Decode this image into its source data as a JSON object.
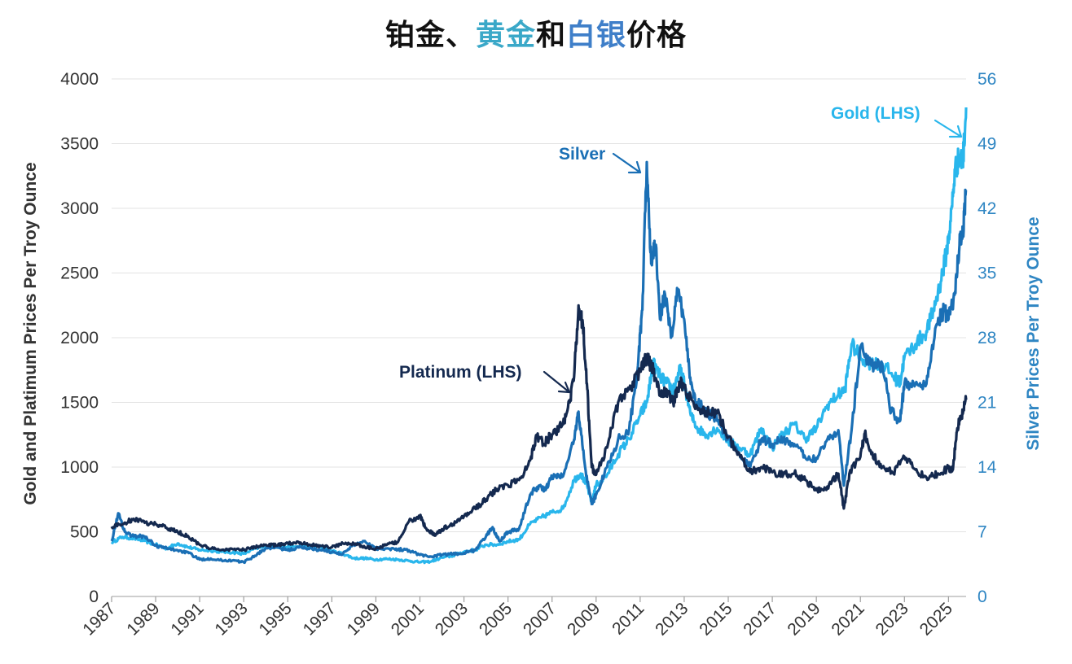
{
  "title_parts": [
    {
      "text": "铂金、",
      "color": "#111111"
    },
    {
      "text": "黄金",
      "color": "#3aa8c8"
    },
    {
      "text": "和",
      "color": "#111111"
    },
    {
      "text": "白银",
      "color": "#3f7fc9"
    },
    {
      "text": "价格",
      "color": "#111111"
    }
  ],
  "chart_data": {
    "type": "line",
    "ylabel": "Gold and Platimum Prices Per Troy Ounce",
    "y2label": "Silver Prices Per Troy Ounce",
    "ylim": [
      0,
      4000
    ],
    "y2lim": [
      0,
      56
    ],
    "yticks": [
      "0",
      "500",
      "1000",
      "1500",
      "2000",
      "2500",
      "3000",
      "3500",
      "4000"
    ],
    "y2ticks": [
      "0",
      "7",
      "14",
      "21",
      "28",
      "35",
      "42",
      "49",
      "56"
    ],
    "xticks": [
      "1987",
      "1989",
      "1991",
      "1993",
      "1995",
      "1997",
      "1999",
      "2001",
      "2003",
      "2005",
      "2007",
      "2009",
      "2011",
      "2013",
      "2015",
      "2017",
      "2019",
      "2021",
      "2023",
      "2025"
    ],
    "xlim": [
      1987,
      2025.8
    ],
    "grid": true,
    "colors": {
      "platinum": "#14294f",
      "gold": "#29b6ec",
      "silver": "#1a6fb5",
      "left_axis": "#333333",
      "right_axis": "#2f86c3"
    },
    "annotations": {
      "platinum": "Platinum (LHS)",
      "silver": "Silver",
      "gold": "Gold (LHS)"
    },
    "series": [
      {
        "name": "Platinum (LHS)",
        "axis": "left",
        "x": [
          1987.0,
          1987.5,
          1988.0,
          1988.5,
          1989.0,
          1989.5,
          1990.0,
          1990.5,
          1991.0,
          1991.5,
          1992.0,
          1992.5,
          1993.0,
          1993.5,
          1994.0,
          1994.5,
          1995.0,
          1995.5,
          1996.0,
          1996.5,
          1997.0,
          1997.5,
          1998.0,
          1998.5,
          1999.0,
          1999.5,
          2000.0,
          2000.5,
          2001.0,
          2001.3,
          2001.7,
          2002.0,
          2002.5,
          2003.0,
          2003.5,
          2004.0,
          2004.5,
          2005.0,
          2005.5,
          2006.0,
          2006.3,
          2006.6,
          2007.0,
          2007.5,
          2007.8,
          2008.0,
          2008.2,
          2008.4,
          2008.6,
          2008.8,
          2009.0,
          2009.5,
          2010.0,
          2010.5,
          2011.0,
          2011.3,
          2011.6,
          2011.9,
          2012.2,
          2012.5,
          2012.8,
          2013.0,
          2013.5,
          2014.0,
          2014.5,
          2015.0,
          2015.5,
          2016.0,
          2016.5,
          2017.0,
          2017.5,
          2018.0,
          2018.5,
          2019.0,
          2019.5,
          2020.0,
          2020.25,
          2020.5,
          2021.0,
          2021.2,
          2021.5,
          2022.0,
          2022.5,
          2023.0,
          2023.5,
          2024.0,
          2024.5,
          2025.0,
          2025.2,
          2025.4,
          2025.6,
          2025.8
        ],
        "values": [
          540,
          560,
          600,
          570,
          560,
          530,
          500,
          460,
          400,
          370,
          360,
          365,
          360,
          380,
          400,
          395,
          410,
          420,
          400,
          390,
          380,
          410,
          410,
          380,
          370,
          400,
          420,
          580,
          620,
          520,
          470,
          520,
          560,
          620,
          680,
          750,
          830,
          860,
          900,
          1050,
          1250,
          1180,
          1250,
          1330,
          1500,
          1700,
          2250,
          2100,
          1600,
          1000,
          940,
          1150,
          1500,
          1600,
          1750,
          1850,
          1750,
          1550,
          1600,
          1500,
          1650,
          1620,
          1450,
          1430,
          1420,
          1230,
          1100,
          960,
          1000,
          960,
          940,
          950,
          900,
          820,
          850,
          950,
          680,
          950,
          1080,
          1260,
          1100,
          1000,
          950,
          1080,
          980,
          920,
          950,
          990,
          980,
          1300,
          1400,
          1520
        ]
      },
      {
        "name": "Gold (LHS)",
        "axis": "left",
        "x": [
          1987.0,
          1987.5,
          1988.0,
          1988.5,
          1989.0,
          1989.5,
          1990.0,
          1990.5,
          1991.0,
          1991.5,
          1992.0,
          1992.5,
          1993.0,
          1993.5,
          1994.0,
          1994.5,
          1995.0,
          1995.5,
          1996.0,
          1996.5,
          1997.0,
          1997.5,
          1998.0,
          1998.5,
          1999.0,
          1999.5,
          2000.0,
          2000.5,
          2001.0,
          2001.5,
          2002.0,
          2002.5,
          2003.0,
          2003.5,
          2004.0,
          2004.5,
          2005.0,
          2005.5,
          2006.0,
          2006.5,
          2007.0,
          2007.5,
          2008.0,
          2008.3,
          2008.6,
          2008.8,
          2009.0,
          2009.5,
          2010.0,
          2010.5,
          2011.0,
          2011.3,
          2011.6,
          2011.9,
          2012.2,
          2012.5,
          2012.8,
          2013.0,
          2013.3,
          2013.6,
          2014.0,
          2014.5,
          2015.0,
          2015.5,
          2016.0,
          2016.5,
          2017.0,
          2017.5,
          2018.0,
          2018.5,
          2019.0,
          2019.5,
          2020.0,
          2020.3,
          2020.6,
          2021.0,
          2021.5,
          2022.0,
          2022.5,
          2022.8,
          2023.0,
          2023.5,
          2024.0,
          2024.3,
          2024.6,
          2024.9,
          2025.1,
          2025.3,
          2025.5,
          2025.65,
          2025.8
        ],
        "values": [
          420,
          460,
          450,
          430,
          400,
          370,
          410,
          380,
          360,
          355,
          345,
          340,
          330,
          370,
          385,
          385,
          385,
          385,
          390,
          385,
          350,
          330,
          295,
          295,
          285,
          290,
          285,
          275,
          265,
          270,
          300,
          315,
          345,
          360,
          400,
          400,
          425,
          440,
          560,
          610,
          650,
          680,
          900,
          950,
          850,
          730,
          860,
          940,
          1100,
          1220,
          1400,
          1500,
          1800,
          1700,
          1650,
          1600,
          1750,
          1650,
          1400,
          1300,
          1250,
          1300,
          1200,
          1150,
          1100,
          1300,
          1150,
          1260,
          1330,
          1220,
          1300,
          1480,
          1560,
          1600,
          1950,
          1850,
          1800,
          1800,
          1700,
          1650,
          1850,
          1950,
          2050,
          2200,
          2400,
          2650,
          2900,
          3300,
          3400,
          3350,
          3780
        ]
      },
      {
        "name": "Silver",
        "axis": "right",
        "x": [
          1987.0,
          1987.3,
          1987.6,
          1988.0,
          1988.5,
          1989.0,
          1989.5,
          1990.0,
          1990.5,
          1991.0,
          1991.5,
          1992.0,
          1992.5,
          1993.0,
          1993.5,
          1994.0,
          1994.5,
          1995.0,
          1995.5,
          1996.0,
          1996.5,
          1997.0,
          1997.5,
          1998.0,
          1998.5,
          1999.0,
          1999.5,
          2000.0,
          2000.5,
          2001.0,
          2001.5,
          2002.0,
          2002.5,
          2003.0,
          2003.5,
          2004.0,
          2004.3,
          2004.6,
          2005.0,
          2005.5,
          2006.0,
          2006.4,
          2006.7,
          2007.0,
          2007.5,
          2008.0,
          2008.2,
          2008.5,
          2008.8,
          2009.0,
          2009.5,
          2010.0,
          2010.5,
          2010.9,
          2011.1,
          2011.3,
          2011.5,
          2011.7,
          2011.9,
          2012.1,
          2012.4,
          2012.7,
          2013.0,
          2013.3,
          2013.6,
          2014.0,
          2014.5,
          2015.0,
          2015.5,
          2016.0,
          2016.5,
          2017.0,
          2017.5,
          2018.0,
          2018.5,
          2019.0,
          2019.5,
          2020.0,
          2020.25,
          2020.6,
          2021.0,
          2021.5,
          2022.0,
          2022.4,
          2022.8,
          2023.0,
          2023.5,
          2024.0,
          2024.4,
          2024.8,
          2025.0,
          2025.3,
          2025.5,
          2025.65,
          2025.8
        ],
        "values": [
          6,
          9,
          7,
          6.5,
          6.5,
          5.5,
          5.2,
          5.0,
          4.7,
          4.0,
          4.1,
          3.9,
          3.9,
          3.7,
          4.4,
          5.2,
          5.3,
          5.0,
          5.3,
          5.2,
          5.0,
          4.8,
          4.6,
          5.6,
          6.0,
          5.2,
          5.2,
          5.1,
          5.0,
          4.5,
          4.3,
          4.5,
          4.6,
          4.7,
          5.0,
          6.5,
          7.5,
          6.0,
          7.0,
          7.3,
          11,
          12,
          11.5,
          13,
          13,
          17,
          20,
          14,
          10,
          11,
          14,
          17,
          18,
          25,
          31,
          47,
          36,
          38,
          30,
          33,
          28,
          33,
          30,
          23,
          21,
          20,
          19,
          17,
          15.5,
          14,
          17,
          16.5,
          17,
          16.5,
          15,
          15,
          17,
          18,
          12,
          18,
          27,
          25,
          25,
          20,
          19,
          23,
          23,
          23,
          29,
          31,
          30,
          33,
          38,
          39,
          44
        ]
      }
    ]
  }
}
